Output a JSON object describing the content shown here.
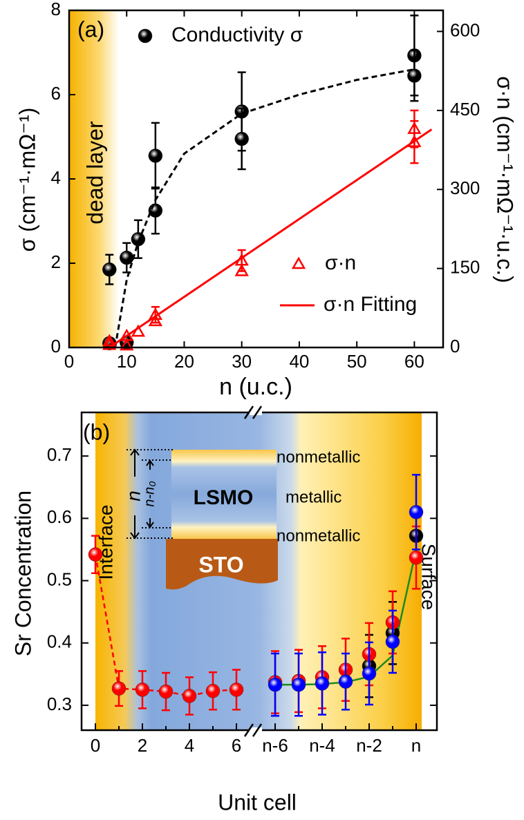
{
  "chart_data": [
    {
      "type": "scatter",
      "panel_label": "(a)",
      "annotation": "dead layer",
      "x_label": "n (u.c.)",
      "y_label": "σ (cm⁻¹·mΩ⁻¹)",
      "y2_label": "σ·n (cm⁻¹·mΩ⁻¹·u.c.)",
      "xlim": [
        0,
        65
      ],
      "xticks": [
        0,
        10,
        20,
        30,
        40,
        50,
        60
      ],
      "ylim": [
        0,
        8
      ],
      "yticks": [
        0,
        2,
        4,
        6,
        8
      ],
      "y2lim": [
        0,
        640
      ],
      "y2ticks": [
        0,
        150,
        300,
        450,
        600
      ],
      "series": [
        {
          "name": "Conductivity σ",
          "color": "#000000",
          "marker": "ball",
          "x": [
            7,
            7,
            10,
            10,
            12,
            15,
            15,
            30,
            30,
            60,
            60
          ],
          "values": [
            1.85,
            0.1,
            2.13,
            0.12,
            2.57,
            4.55,
            3.25,
            5.6,
            4.95,
            6.93,
            6.45
          ],
          "errors": [
            0.35,
            null,
            0.35,
            null,
            0.45,
            0.78,
            0.55,
            0.93,
            0.72,
            0.95,
            0.6
          ]
        },
        {
          "color": "#000000",
          "style": "dashed",
          "x": [
            8,
            10,
            12,
            15,
            20,
            30,
            40,
            50,
            60
          ],
          "values": [
            0,
            1.6,
            2.5,
            3.5,
            4.6,
            5.55,
            6.0,
            6.35,
            6.6
          ]
        },
        {
          "name": "σ·n",
          "color": "#ff0000",
          "marker": "triangle",
          "axis": "y2",
          "x": [
            7,
            7,
            10,
            10,
            12,
            15,
            15,
            30,
            30,
            60,
            60
          ],
          "values": [
            12,
            5,
            22,
            4,
            30,
            62,
            50,
            165,
            145,
            415,
            390
          ],
          "errors": [
            null,
            null,
            null,
            null,
            null,
            15,
            null,
            20,
            null,
            35,
            40
          ]
        },
        {
          "name": "σ·n Fitting",
          "color": "#ff0000",
          "style": "solid",
          "axis": "y2",
          "x": [
            7,
            63
          ],
          "values": [
            0,
            414
          ]
        }
      ]
    },
    {
      "type": "line",
      "panel_label": "(b)",
      "annotations": [
        "Interface",
        "Surface"
      ],
      "x_label": "Unit cell",
      "y_label": "Sr Concentration",
      "categories": [
        "0",
        null,
        "2",
        null,
        "4",
        null,
        "6",
        "n-6",
        null,
        "n-4",
        null,
        "n-2",
        null,
        "n"
      ],
      "ylim": [
        0.26,
        0.77
      ],
      "yticks": [
        0.3,
        0.4,
        0.5,
        0.6,
        0.7
      ],
      "series": [
        {
          "color": "#1a8a1a",
          "style": "solid",
          "values": [
            null,
            null,
            null,
            null,
            null,
            null,
            null,
            0.333,
            0.333,
            0.334,
            0.337,
            0.346,
            0.38,
            0.55
          ]
        },
        {
          "color": "#ff0000",
          "style": "dashed",
          "marker": "ball",
          "values": [
            0.542,
            0.327,
            0.325,
            0.322,
            0.315,
            0.323,
            0.325,
            null,
            null,
            null,
            null,
            null,
            null,
            null
          ],
          "errors": [
            0.03,
            0.028,
            0.03,
            0.03,
            0.03,
            0.03,
            0.032,
            null,
            null,
            null,
            null,
            null,
            null,
            null
          ]
        },
        {
          "color": "#000000",
          "marker": "ball",
          "values": [
            null,
            null,
            null,
            null,
            null,
            null,
            null,
            null,
            null,
            null,
            null,
            0.363,
            0.416,
            0.572
          ],
          "errors": [
            null,
            null,
            null,
            null,
            null,
            null,
            null,
            null,
            null,
            null,
            null,
            0.05,
            0.05,
            null
          ]
        },
        {
          "color": "#ff0000",
          "marker": "ball",
          "values": [
            null,
            null,
            null,
            null,
            null,
            null,
            null,
            0.337,
            0.339,
            0.345,
            0.357,
            0.382,
            0.433,
            0.537
          ],
          "errors": [
            null,
            null,
            null,
            null,
            null,
            null,
            null,
            0.05,
            0.05,
            0.05,
            0.05,
            0.05,
            0.05,
            0.05
          ]
        },
        {
          "color": "#0000ff",
          "marker": "ball",
          "values": [
            null,
            null,
            null,
            null,
            null,
            null,
            null,
            0.333,
            0.333,
            0.335,
            0.338,
            0.351,
            0.402,
            0.61
          ],
          "errors": [
            null,
            null,
            null,
            null,
            null,
            null,
            null,
            0.05,
            0.05,
            0.05,
            0.045,
            0.05,
            0.05,
            0.06
          ]
        }
      ],
      "inset": {
        "top_layer": "nonmetallic",
        "middle_layer": "metallic",
        "bottom_layer": "nonmetallic",
        "film": "LSMO",
        "substrate": "STO",
        "thickness": "n",
        "metallic_thickness": "n-n₀"
      }
    }
  ]
}
